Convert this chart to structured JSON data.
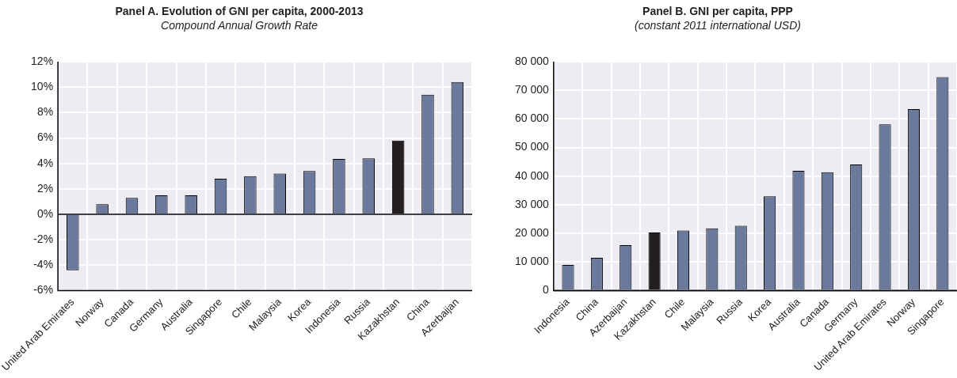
{
  "chart_data": [
    {
      "type": "bar",
      "title": "Panel A. Evolution of GNI per capita, 2000-2013",
      "subtitle": "Compound Annual Growth Rate",
      "categories": [
        "United Arab Emirates",
        "Norway",
        "Canada",
        "Germany",
        "Australia",
        "Singapore",
        "Chile",
        "Malaysia",
        "Korea",
        "Indonesia",
        "Russia",
        "Kazakhstan",
        "China",
        "Azerbaijan"
      ],
      "values": [
        -4.4,
        0.8,
        1.3,
        1.5,
        1.5,
        2.8,
        3.0,
        3.2,
        3.4,
        4.35,
        4.4,
        5.8,
        9.4,
        10.4
      ],
      "colors": [
        "#6b7a9c",
        "#6b7a9c",
        "#6b7a9c",
        "#6b7a9c",
        "#6b7a9c",
        "#6b7a9c",
        "#6b7a9c",
        "#6b7a9c",
        "#6b7a9c",
        "#6b7a9c",
        "#6b7a9c",
        "#231f20",
        "#6b7a9c",
        "#6b7a9c"
      ],
      "ylim": [
        -6,
        12
      ],
      "yticks": [
        {
          "value": -6,
          "label": "-6%"
        },
        {
          "value": -4,
          "label": "-4%"
        },
        {
          "value": -2,
          "label": "-2%"
        },
        {
          "value": 0,
          "label": "0%"
        },
        {
          "value": 2,
          "label": "2%"
        },
        {
          "value": 4,
          "label": "4%"
        },
        {
          "value": 6,
          "label": "6%"
        },
        {
          "value": 8,
          "label": "8%"
        },
        {
          "value": 10,
          "label": "10%"
        },
        {
          "value": 12,
          "label": "12%"
        }
      ],
      "grid": true,
      "legend": false
    },
    {
      "type": "bar",
      "title": "Panel B. GNI per capita, PPP",
      "subtitle": "(constant 2011 international USD)",
      "categories": [
        "Indonesia",
        "China",
        "Azerbaijan",
        "Kazakhstan",
        "Chile",
        "Malaysia",
        "Russia",
        "Korea",
        "Australia",
        "Canada",
        "Germany",
        "United Arab Emirates",
        "Norway",
        "Singapore"
      ],
      "values": [
        9000,
        11500,
        15900,
        20300,
        21000,
        21800,
        22700,
        33000,
        41900,
        41400,
        44100,
        58100,
        63400,
        74600
      ],
      "colors": [
        "#6b7a9c",
        "#6b7a9c",
        "#6b7a9c",
        "#231f20",
        "#6b7a9c",
        "#6b7a9c",
        "#6b7a9c",
        "#6b7a9c",
        "#6b7a9c",
        "#6b7a9c",
        "#6b7a9c",
        "#6b7a9c",
        "#6b7a9c",
        "#6b7a9c"
      ],
      "ylim": [
        0,
        80000
      ],
      "yticks": [
        {
          "value": 0,
          "label": "0"
        },
        {
          "value": 10000,
          "label": "10 000"
        },
        {
          "value": 20000,
          "label": "20 000"
        },
        {
          "value": 30000,
          "label": "30 000"
        },
        {
          "value": 40000,
          "label": "40 000"
        },
        {
          "value": 50000,
          "label": "50 000"
        },
        {
          "value": 60000,
          "label": "60 000"
        },
        {
          "value": 70000,
          "label": "70 000"
        },
        {
          "value": 80000,
          "label": "80 000"
        }
      ],
      "grid": true,
      "legend": false
    }
  ]
}
